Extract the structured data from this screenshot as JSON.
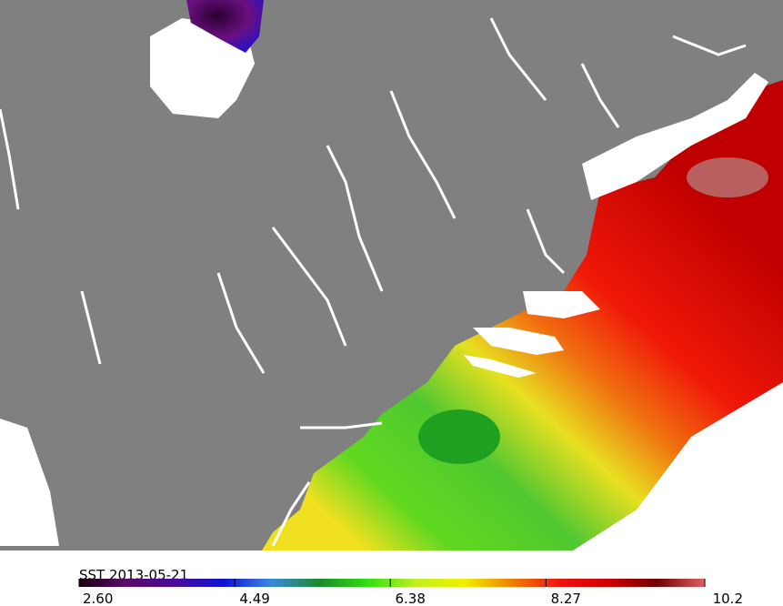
{
  "colorbar": {
    "title": "SST  2013-05-21",
    "range": [
      2.6,
      10.2
    ],
    "ticks": [
      {
        "value": 2.6,
        "label": "2.60"
      },
      {
        "value": 4.49,
        "label": "4.49"
      },
      {
        "value": 6.38,
        "label": "6.38"
      },
      {
        "value": 8.27,
        "label": "8.27"
      },
      10.2
    ],
    "colors": [
      "#1a0010",
      "#5a0a6a",
      "#4a0a9a",
      "#1010d0",
      "#3a8ae0",
      "#1a8a2a",
      "#30e010",
      "#c0f020",
      "#f0f000",
      "#f08000",
      "#f01010",
      "#d00000",
      "#700000",
      "#e06060"
    ]
  }
}
